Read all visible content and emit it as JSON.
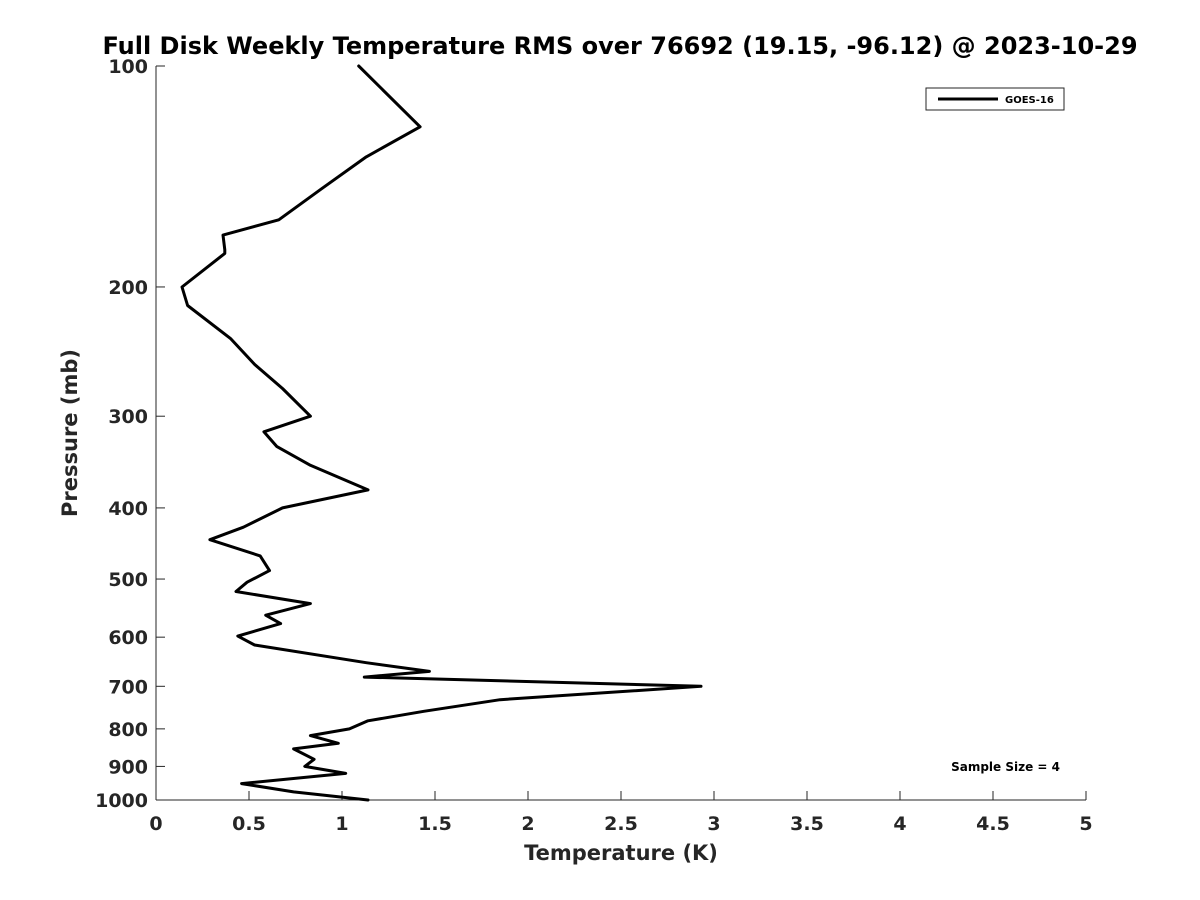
{
  "chart_data": {
    "type": "line",
    "title": "Full Disk Weekly Temperature RMS over 76692 (19.15, -96.12) @ 2023-10-29",
    "xlabel": "Temperature (K)",
    "ylabel": "Pressure (mb)",
    "xlim": [
      0,
      5
    ],
    "ylim": [
      1000,
      100
    ],
    "y_scale": "log",
    "y_reversed": true,
    "xticks": [
      0,
      0.5,
      1,
      1.5,
      2,
      2.5,
      3,
      3.5,
      4,
      4.5,
      5
    ],
    "xtick_labels": [
      "0",
      "0.5",
      "1",
      "1.5",
      "2",
      "2.5",
      "3",
      "3.5",
      "4",
      "4.5",
      "5"
    ],
    "yticks": [
      100,
      200,
      300,
      400,
      500,
      600,
      700,
      800,
      900,
      1000
    ],
    "ytick_labels": [
      "100",
      "200",
      "300",
      "400",
      "500",
      "600",
      "700",
      "800",
      "900",
      "1000"
    ],
    "grid": false,
    "legend_position": "top-right",
    "series": [
      {
        "name": "GOES-16",
        "color": "#000000",
        "x": [
          1.09,
          1.42,
          1.13,
          0.89,
          0.66,
          0.36,
          0.37,
          0.37,
          0.14,
          0.17,
          0.4,
          0.53,
          0.68,
          0.83,
          0.58,
          0.65,
          0.83,
          1.14,
          0.68,
          0.47,
          0.29,
          0.56,
          0.61,
          0.49,
          0.43,
          0.83,
          0.59,
          0.67,
          0.44,
          0.53,
          1.13,
          1.47,
          1.12,
          2.93,
          1.85,
          1.44,
          1.14,
          1.04,
          0.83,
          0.98,
          0.74,
          0.85,
          0.8,
          1.02,
          0.46,
          0.74,
          1.14
        ],
        "y": [
          100,
          121,
          133,
          147,
          162,
          170,
          178,
          180,
          200,
          212,
          235,
          255,
          275,
          300,
          315,
          330,
          350,
          378,
          400,
          425,
          442,
          465,
          487,
          505,
          520,
          540,
          560,
          575,
          598,
          615,
          650,
          668,
          680,
          700,
          730,
          757,
          780,
          800,
          817,
          837,
          852,
          880,
          900,
          920,
          950,
          975,
          1000
        ]
      }
    ],
    "annotation": "Sample Size = 4"
  }
}
